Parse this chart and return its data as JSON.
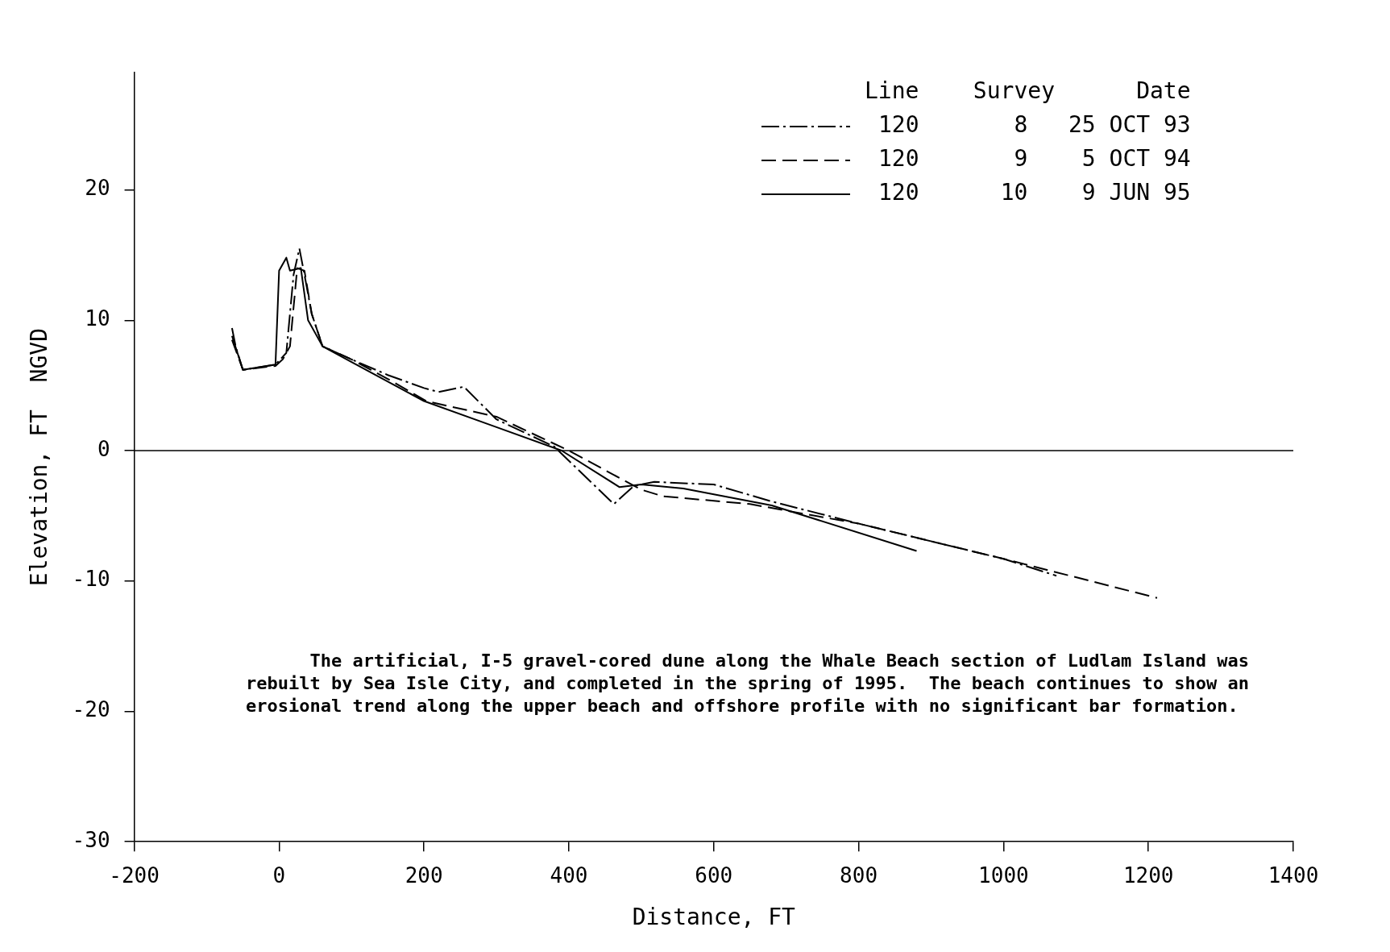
{
  "chart_data": {
    "type": "line",
    "xlabel": "Distance, FT",
    "ylabel": "Elevation, FT  NGVD",
    "legend_title": "Line    Survey      Date",
    "legend": "top right",
    "marker": "none",
    "grid": false,
    "xlim": [
      -200,
      1400
    ],
    "xticks": [
      -200,
      0,
      200,
      400,
      600,
      800,
      1000,
      1200,
      1400
    ],
    "ylim": [
      -30,
      29
    ],
    "yticks": [
      -30,
      -20,
      -10,
      0,
      10,
      20
    ],
    "ref_lines": [
      {
        "axis": "y",
        "value": 0
      }
    ],
    "annotations": [
      "The artificial, I-5 gravel-cored dune along the Whale Beach section of Ludlam Island was rebuilt by Sea Isle City, and completed in the spring of 1995.  The beach continues to show an erosional trend along the upper beach and offshore profile with no significant bar formation."
    ],
    "series": [
      {
        "name": "120       8   25 OCT 93",
        "color": "#000000",
        "line_style": "dashdot",
        "x": [
          -65,
          -60,
          -50,
          -5,
          10,
          20,
          28,
          35,
          45,
          60,
          100,
          150,
          200,
          220,
          255,
          300,
          380,
          462,
          490,
          518,
          600,
          680,
          800,
          1000,
          1073
        ],
        "values": [
          9.4,
          8.0,
          6.2,
          6.6,
          7.5,
          13.5,
          15.5,
          13.5,
          10.5,
          8.0,
          7.0,
          5.8,
          4.8,
          4.5,
          4.9,
          2.4,
          0.3,
          -4.1,
          -2.7,
          -2.4,
          -2.6,
          -3.9,
          -5.6,
          -8.3,
          -9.6
        ]
      },
      {
        "name": "120       9    5 OCT 94",
        "color": "#000000",
        "line_style": "dashed",
        "x": [
          -65,
          -50,
          -5,
          5,
          15,
          25,
          35,
          45,
          60,
          100,
          150,
          203,
          300,
          400,
          500,
          530,
          650,
          800,
          1000,
          1212
        ],
        "values": [
          8.5,
          6.2,
          6.5,
          7.0,
          8.0,
          14.0,
          13.8,
          10.5,
          8.0,
          7.0,
          5.5,
          3.8,
          2.6,
          0.0,
          -3.0,
          -3.5,
          -4.1,
          -5.6,
          -8.3,
          -11.3
        ]
      },
      {
        "name": "120      10    9 JUN 95",
        "color": "#000000",
        "line_style": "solid",
        "x": [
          -65,
          -50,
          -5,
          0,
          10,
          15,
          30,
          40,
          60,
          100,
          200,
          300,
          390,
          470,
          500,
          558,
          680,
          880
        ],
        "values": [
          8.8,
          6.2,
          6.6,
          13.8,
          14.8,
          13.8,
          14.0,
          10.0,
          8.0,
          6.8,
          3.8,
          1.8,
          0.0,
          -2.8,
          -2.6,
          -2.9,
          -4.2,
          -7.7
        ]
      }
    ]
  }
}
